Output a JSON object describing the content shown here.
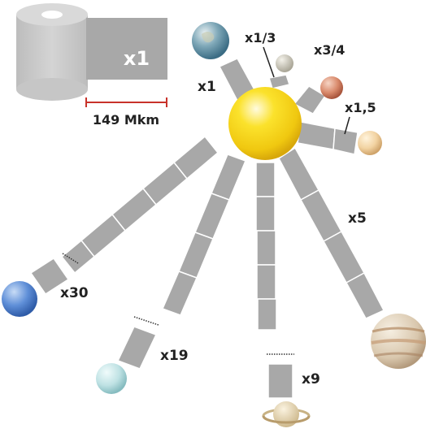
{
  "legend": {
    "roll_multiplier": "x1",
    "distance_label": "149 Mkm"
  },
  "planets": [
    {
      "name_icon": "earth-icon",
      "multiplier": "x1"
    },
    {
      "name_icon": "mercury-icon",
      "multiplier": "x1/3"
    },
    {
      "name_icon": "venus-icon",
      "multiplier": "x3/4"
    },
    {
      "name_icon": "mars-icon",
      "multiplier": "x1,5"
    },
    {
      "name_icon": "jupiter-icon",
      "multiplier": "x5"
    },
    {
      "name_icon": "saturn-icon",
      "multiplier": "x9"
    },
    {
      "name_icon": "uranus-icon",
      "multiplier": "x19"
    },
    {
      "name_icon": "neptune-icon",
      "multiplier": "x30"
    }
  ],
  "colors": {
    "strip": "#a8a8a8",
    "sun": "#f5d418",
    "scale_bar": "#c8322a",
    "label": "#222222"
  }
}
